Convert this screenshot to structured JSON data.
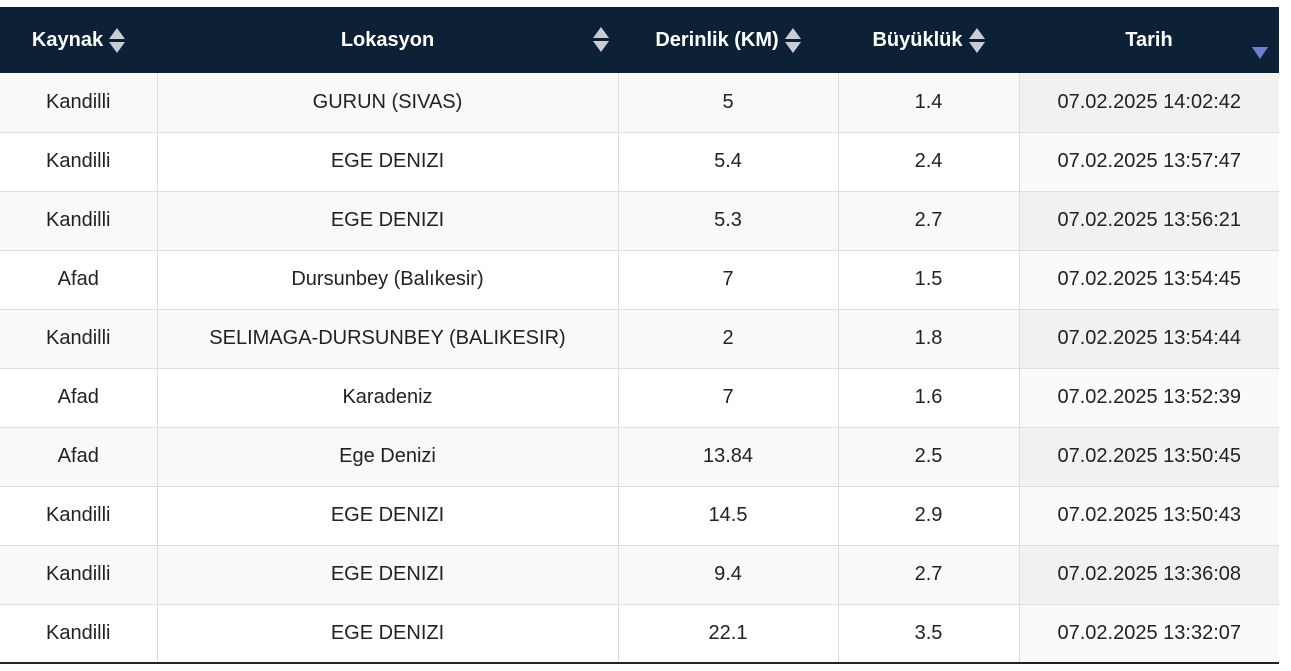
{
  "table": {
    "headers": [
      {
        "label": "Kaynak",
        "sort": "both"
      },
      {
        "label": "Lokasyon",
        "sort": "both"
      },
      {
        "label": "Derinlik (KM)",
        "sort": "both"
      },
      {
        "label": "Büyüklük",
        "sort": "both"
      },
      {
        "label": "Tarih",
        "sort": "desc"
      }
    ],
    "rows": [
      [
        "Kandilli",
        "GURUN (SIVAS)",
        "5",
        "1.4",
        "07.02.2025 14:02:42"
      ],
      [
        "Kandilli",
        "EGE DENIZI",
        "5.4",
        "2.4",
        "07.02.2025 13:57:47"
      ],
      [
        "Kandilli",
        "EGE DENIZI",
        "5.3",
        "2.7",
        "07.02.2025 13:56:21"
      ],
      [
        "Afad",
        "Dursunbey (Balıkesir)",
        "7",
        "1.5",
        "07.02.2025 13:54:45"
      ],
      [
        "Kandilli",
        "SELIMAGA-DURSUNBEY (BALIKESIR)",
        "2",
        "1.8",
        "07.02.2025 13:54:44"
      ],
      [
        "Afad",
        "Karadeniz",
        "7",
        "1.6",
        "07.02.2025 13:52:39"
      ],
      [
        "Afad",
        "Ege Denizi",
        "13.84",
        "2.5",
        "07.02.2025 13:50:45"
      ],
      [
        "Kandilli",
        "EGE DENIZI",
        "14.5",
        "2.9",
        "07.02.2025 13:50:43"
      ],
      [
        "Kandilli",
        "EGE DENIZI",
        "9.4",
        "2.7",
        "07.02.2025 13:36:08"
      ],
      [
        "Kandilli",
        "EGE DENIZI",
        "22.1",
        "3.5",
        "07.02.2025 13:32:07"
      ]
    ]
  },
  "colors": {
    "header_bg": "#0c2135",
    "sort_icon": "#c9ccd1",
    "sort_desc_icon": "#6f7fcf"
  },
  "icons": {
    "sort_both": "sort-both-icon",
    "sort_desc": "sort-desc-icon"
  }
}
